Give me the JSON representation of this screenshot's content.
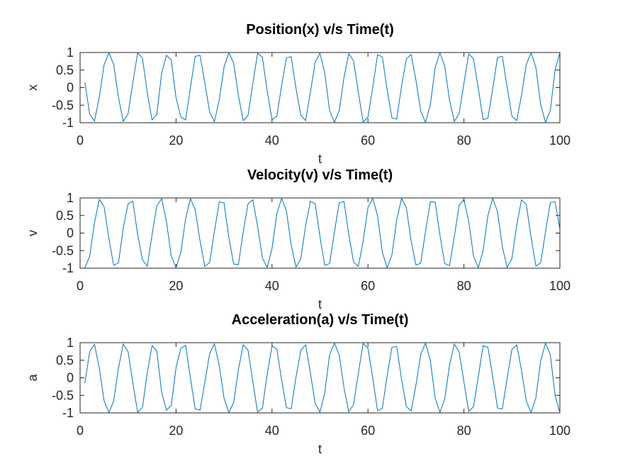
{
  "colors": {
    "series": "#0072BD",
    "axes": "#262626"
  },
  "chart_data": [
    {
      "type": "line",
      "title": "Position(x) v/s Time(t)",
      "xlabel": "t",
      "ylabel": "x",
      "xlim": [
        0,
        100
      ],
      "ylim": [
        -1,
        1
      ],
      "xticks": [
        "0",
        "20",
        "40",
        "60",
        "80",
        "100"
      ],
      "yticks": [
        "1",
        "0.5",
        "0",
        "-0.5",
        "-1"
      ],
      "grid": false,
      "series": [
        {
          "x": [
            1,
            2,
            3,
            4,
            5,
            6,
            7,
            8,
            9,
            10,
            11,
            12,
            13,
            14,
            15,
            16,
            17,
            18,
            19,
            20,
            21,
            22,
            23,
            24,
            25,
            26,
            27,
            28,
            29,
            30,
            31,
            32,
            33,
            34,
            35,
            36,
            37,
            38,
            39,
            40,
            41,
            42,
            43,
            44,
            45,
            46,
            47,
            48,
            49,
            50,
            51,
            52,
            53,
            54,
            55,
            56,
            57,
            58,
            59,
            60,
            61,
            62,
            63,
            64,
            65,
            66,
            67,
            68,
            69,
            70,
            71,
            72,
            73,
            74,
            75,
            76,
            77,
            78,
            79,
            80,
            81,
            82,
            83,
            84,
            85,
            86,
            87,
            88,
            89,
            90,
            91,
            92,
            93,
            94,
            95,
            96,
            97,
            98,
            99,
            100
          ],
          "values": [
            0.15,
            -0.75,
            -0.95,
            -0.28,
            0.65,
            0.99,
            0.66,
            -0.28,
            -0.96,
            -0.75,
            0.15,
            0.99,
            0.84,
            -0.14,
            -0.92,
            -0.76,
            0.41,
            0.92,
            0.79,
            -0.29,
            -0.84,
            -0.92,
            0.01,
            0.89,
            0.92,
            0.13,
            -0.69,
            -0.97,
            -0.35,
            0.58,
            0.99,
            0.71,
            -0.23,
            -0.94,
            -0.79,
            0.11,
            0.98,
            0.86,
            -0.1,
            -0.91,
            -0.82,
            0.06,
            0.85,
            0.88,
            -0.02,
            -0.78,
            -0.94,
            -0.14,
            0.73,
            0.98,
            0.42,
            -0.65,
            -0.99,
            -0.66,
            0.28,
            0.97,
            0.76,
            -0.14,
            -0.98,
            -0.84,
            0.01,
            0.94,
            0.87,
            -0.06,
            -0.87,
            -0.89,
            0.04,
            0.82,
            0.94,
            0.21,
            -0.67,
            -0.99,
            -0.49,
            0.57,
            0.99,
            0.61,
            -0.36,
            -0.96,
            -0.74,
            0.12,
            0.96,
            0.82,
            -0.03,
            -0.91,
            -0.87,
            -0.03,
            0.86,
            0.89,
            0.02,
            -0.81,
            -0.94,
            -0.22,
            0.66,
            0.99,
            0.57,
            -0.48,
            -0.99,
            -0.66,
            0.5,
            1.0
          ]
        }
      ]
    },
    {
      "type": "line",
      "title": "Velocity(v) v/s Time(t)",
      "xlabel": "t",
      "ylabel": "v",
      "xlim": [
        0,
        100
      ],
      "ylim": [
        -1,
        1
      ],
      "xticks": [
        "0",
        "20",
        "40",
        "60",
        "80",
        "100"
      ],
      "yticks": [
        "1",
        "0.5",
        "0",
        "-0.5",
        "-1"
      ],
      "grid": false,
      "series": [
        {
          "x": [
            1,
            2,
            3,
            4,
            5,
            6,
            7,
            8,
            9,
            10,
            11,
            12,
            13,
            14,
            15,
            16,
            17,
            18,
            19,
            20,
            21,
            22,
            23,
            24,
            25,
            26,
            27,
            28,
            29,
            30,
            31,
            32,
            33,
            34,
            35,
            36,
            37,
            38,
            39,
            40,
            41,
            42,
            43,
            44,
            45,
            46,
            47,
            48,
            49,
            50,
            51,
            52,
            53,
            54,
            55,
            56,
            57,
            58,
            59,
            60,
            61,
            62,
            63,
            64,
            65,
            66,
            67,
            68,
            69,
            70,
            71,
            72,
            73,
            74,
            75,
            76,
            77,
            78,
            79,
            80,
            81,
            82,
            83,
            84,
            85,
            86,
            87,
            88,
            89,
            90,
            91,
            92,
            93,
            94,
            95,
            96,
            97,
            98,
            99,
            100
          ],
          "values": [
            -0.99,
            -0.66,
            0.29,
            0.96,
            0.75,
            -0.15,
            -0.92,
            -0.85,
            0.14,
            0.83,
            0.91,
            -0.05,
            -0.76,
            -0.95,
            -0.05,
            0.78,
            0.98,
            0.33,
            -0.65,
            -0.99,
            -0.55,
            0.41,
            0.98,
            0.66,
            -0.22,
            -0.95,
            -0.84,
            0.05,
            0.89,
            0.86,
            -0.12,
            -0.88,
            -0.9,
            0.03,
            0.83,
            0.95,
            0.19,
            -0.71,
            -0.98,
            -0.44,
            0.55,
            0.99,
            0.63,
            -0.34,
            -0.97,
            -0.73,
            0.2,
            0.91,
            0.84,
            -0.11,
            -0.92,
            -0.87,
            0.02,
            0.86,
            0.9,
            -0.04,
            -0.82,
            -0.95,
            -0.22,
            0.73,
            0.99,
            0.49,
            -0.55,
            -0.99,
            -0.62,
            0.38,
            0.99,
            0.72,
            -0.22,
            -0.91,
            -0.86,
            0.05,
            0.89,
            0.88,
            -0.06,
            -0.87,
            -0.93,
            -0.1,
            0.79,
            0.96,
            0.34,
            -0.66,
            -0.98,
            -0.5,
            0.5,
            0.99,
            0.61,
            -0.38,
            -0.98,
            -0.73,
            0.22,
            0.95,
            0.81,
            -0.13,
            -0.94,
            -0.85,
            0.03,
            0.87,
            0.89,
            0.1
          ]
        }
      ]
    },
    {
      "type": "line",
      "title": "Acceleration(a) v/s Time(t)",
      "xlabel": "t",
      "ylabel": "a",
      "xlim": [
        0,
        100
      ],
      "ylim": [
        -1,
        1
      ],
      "xticks": [
        "0",
        "20",
        "40",
        "60",
        "80",
        "100"
      ],
      "yticks": [
        "1",
        "0.5",
        "0",
        "-0.5",
        "-1"
      ],
      "grid": false,
      "series": [
        {
          "x": [
            1,
            2,
            3,
            4,
            5,
            6,
            7,
            8,
            9,
            10,
            11,
            12,
            13,
            14,
            15,
            16,
            17,
            18,
            19,
            20,
            21,
            22,
            23,
            24,
            25,
            26,
            27,
            28,
            29,
            30,
            31,
            32,
            33,
            34,
            35,
            36,
            37,
            38,
            39,
            40,
            41,
            42,
            43,
            44,
            45,
            46,
            47,
            48,
            49,
            50,
            51,
            52,
            53,
            54,
            55,
            56,
            57,
            58,
            59,
            60,
            61,
            62,
            63,
            64,
            65,
            66,
            67,
            68,
            69,
            70,
            71,
            72,
            73,
            74,
            75,
            76,
            77,
            78,
            79,
            80,
            81,
            82,
            83,
            84,
            85,
            86,
            87,
            88,
            89,
            90,
            91,
            92,
            93,
            94,
            95,
            96,
            97,
            98,
            99,
            100
          ],
          "values": [
            -0.15,
            0.75,
            0.95,
            0.28,
            -0.65,
            -0.99,
            -0.66,
            0.28,
            0.96,
            0.75,
            -0.15,
            -0.99,
            -0.84,
            0.14,
            0.92,
            0.76,
            -0.41,
            -0.92,
            -0.79,
            0.29,
            0.84,
            0.92,
            -0.01,
            -0.89,
            -0.92,
            -0.13,
            0.69,
            0.97,
            0.35,
            -0.58,
            -0.99,
            -0.71,
            0.23,
            0.94,
            0.79,
            -0.11,
            -0.98,
            -0.86,
            0.1,
            0.91,
            0.82,
            -0.06,
            -0.85,
            -0.88,
            0.02,
            0.78,
            0.94,
            0.14,
            -0.73,
            -0.98,
            -0.42,
            0.65,
            0.99,
            0.66,
            -0.28,
            -0.97,
            -0.76,
            0.14,
            0.98,
            0.84,
            -0.01,
            -0.94,
            -0.87,
            0.06,
            0.87,
            0.89,
            -0.04,
            -0.82,
            -0.94,
            -0.21,
            0.67,
            0.99,
            0.49,
            -0.57,
            -0.99,
            -0.61,
            0.36,
            0.96,
            0.74,
            -0.12,
            -0.96,
            -0.82,
            0.03,
            0.91,
            0.87,
            0.03,
            -0.86,
            -0.89,
            -0.02,
            0.81,
            0.94,
            0.22,
            -0.66,
            -0.99,
            -0.57,
            0.48,
            0.99,
            0.66,
            -0.5,
            -1.0
          ]
        }
      ]
    }
  ]
}
